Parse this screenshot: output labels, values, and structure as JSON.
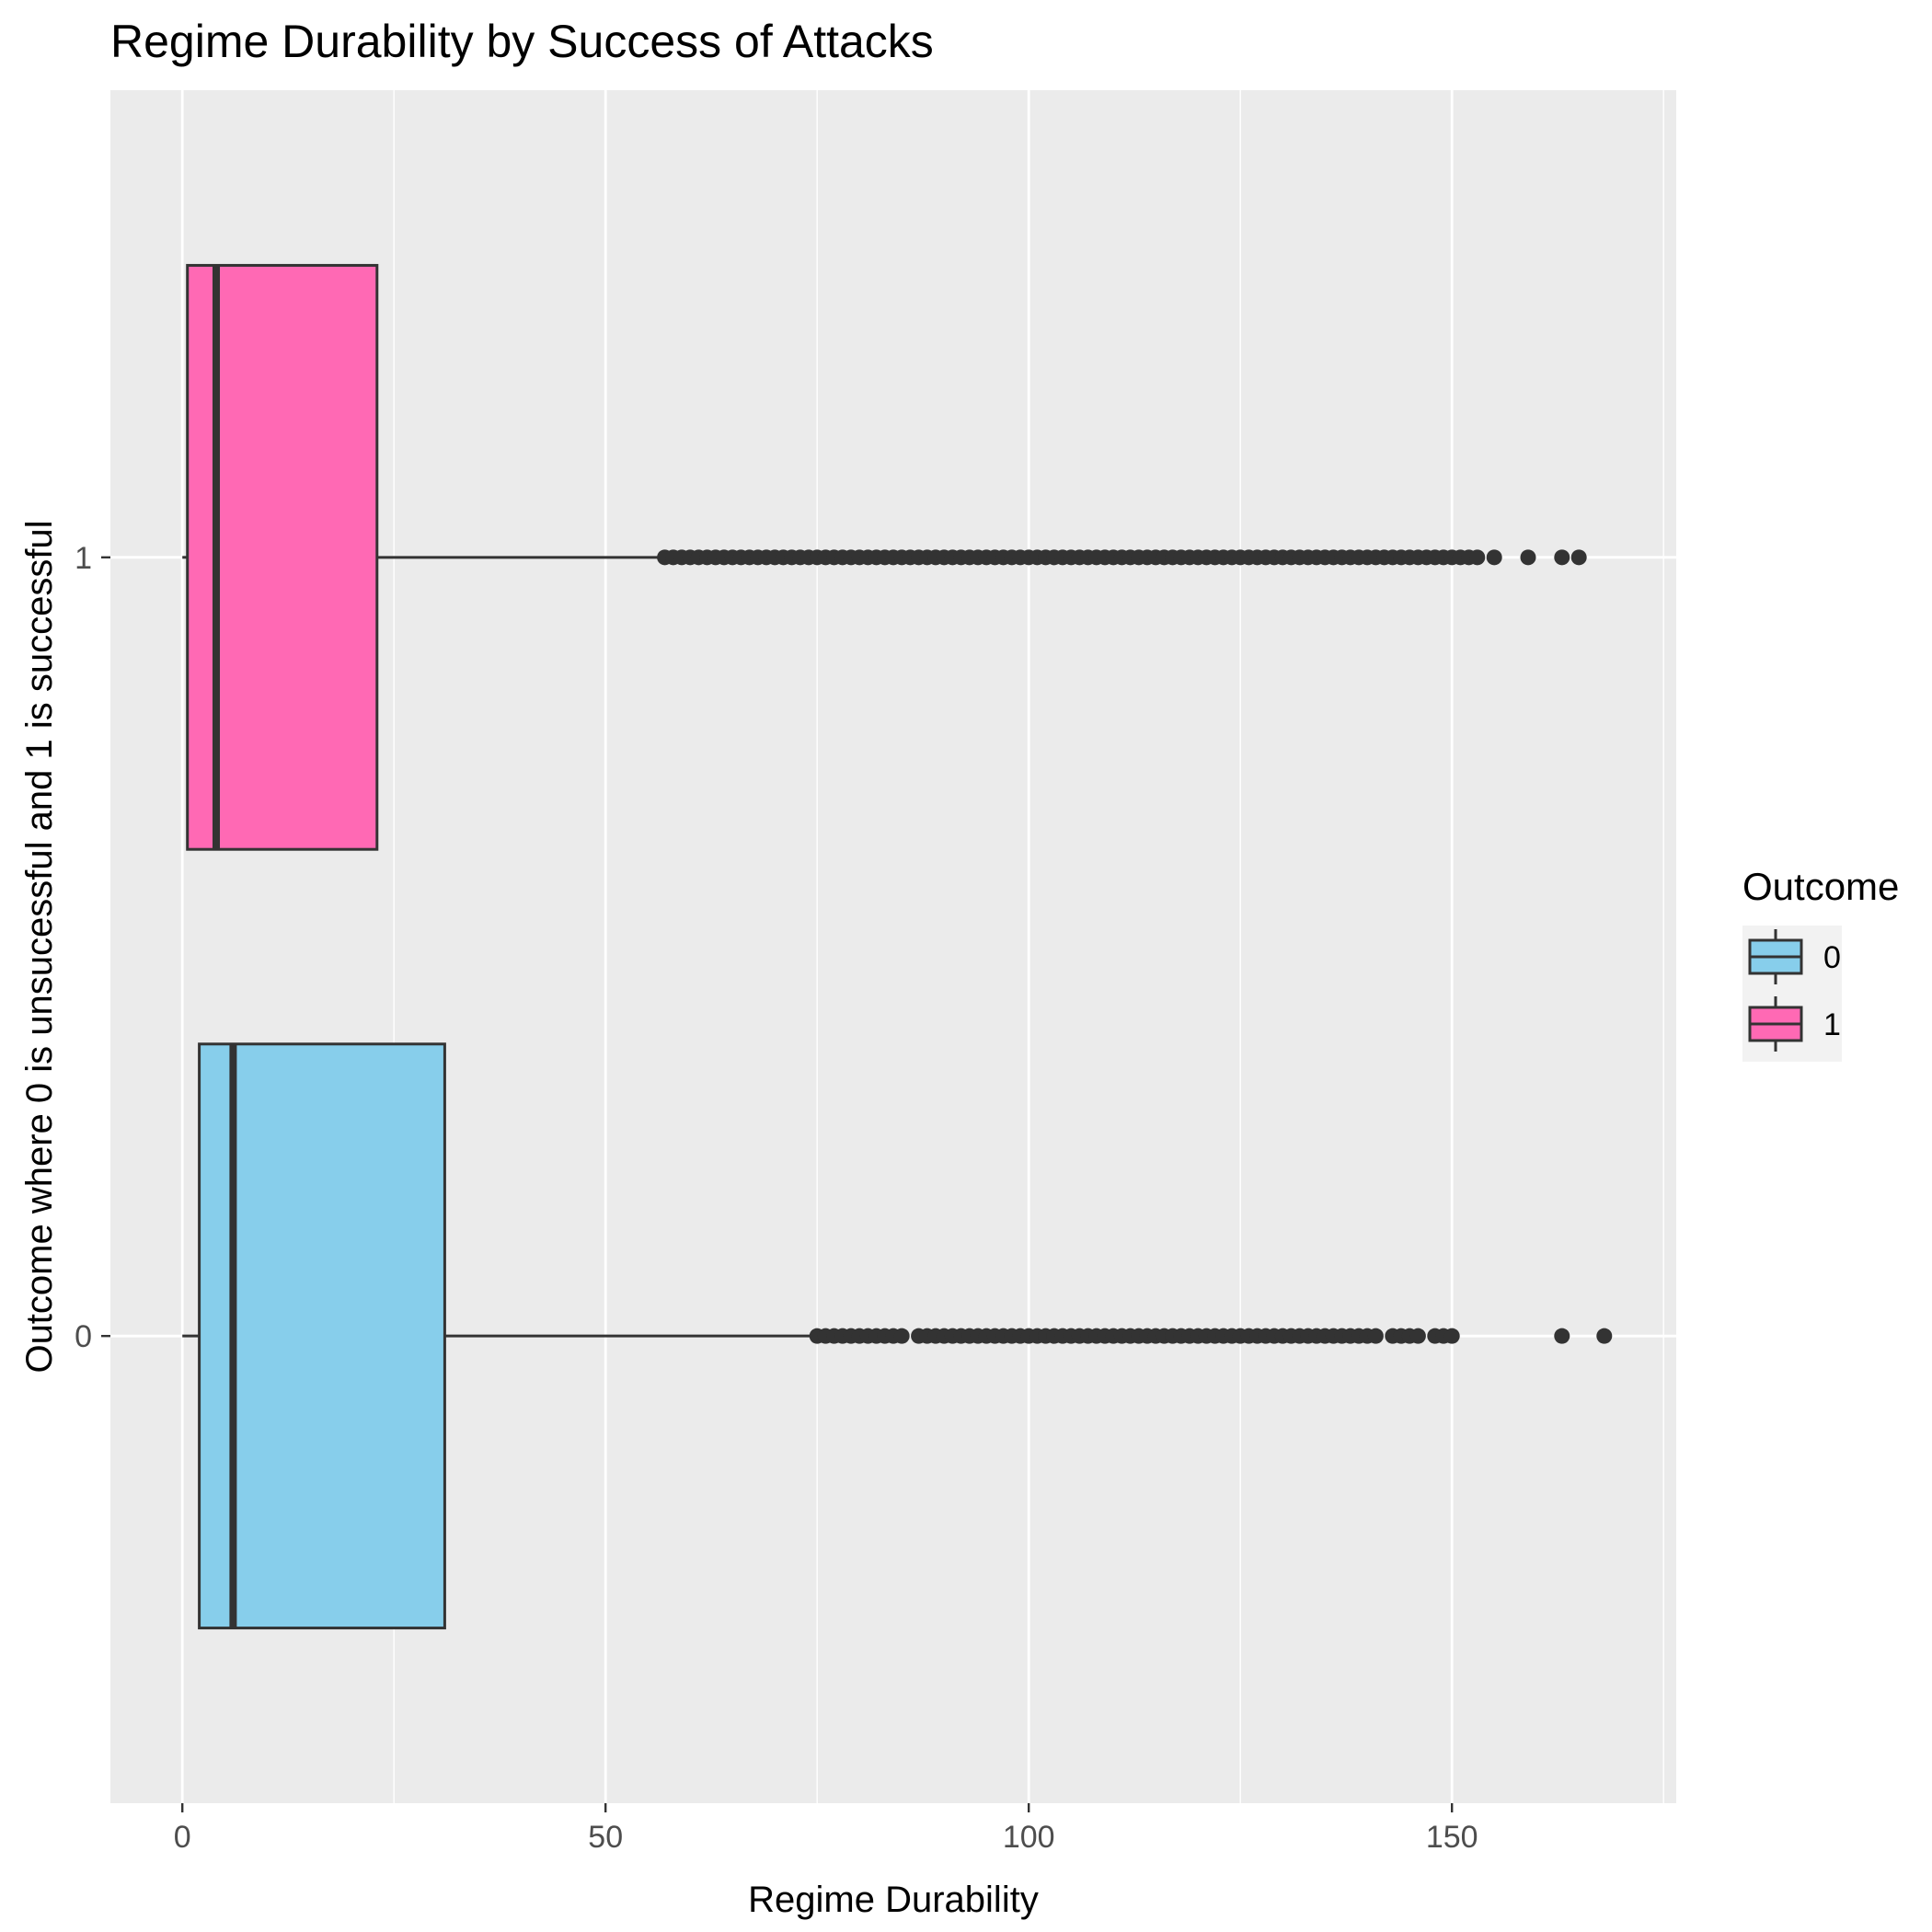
{
  "chart_data": {
    "type": "boxplot",
    "orientation": "horizontal",
    "title": "Regime Durability by Success of Attacks",
    "xlabel": "Regime Durability",
    "ylabel": "Outcome where 0 is unsucessful and 1 is successful",
    "xlim": [
      -8.5,
      176.5
    ],
    "xticks": [
      0,
      50,
      100,
      150
    ],
    "x_minor_ticks": [
      25,
      75,
      125,
      175
    ],
    "categories": [
      "0",
      "1"
    ],
    "grid": true,
    "legend": {
      "title": "Outcome",
      "position": "right",
      "entries": [
        {
          "label": "0",
          "color": "#87ceeb"
        },
        {
          "label": "1",
          "color": "#ff69b4"
        }
      ]
    },
    "series": [
      {
        "category": "0",
        "color": "#87ceeb",
        "min": 0,
        "q1": 2,
        "median": 6,
        "q3": 31,
        "whisker_high": 75,
        "outliers": [
          75,
          76,
          77,
          78,
          79,
          80,
          81,
          82,
          83,
          84,
          85,
          87,
          88,
          89,
          90,
          91,
          92,
          93,
          94,
          95,
          96,
          97,
          98,
          99,
          100,
          101,
          102,
          103,
          104,
          105,
          106,
          107,
          108,
          109,
          110,
          111,
          112,
          113,
          114,
          115,
          116,
          117,
          118,
          119,
          120,
          121,
          122,
          123,
          124,
          125,
          126,
          127,
          128,
          129,
          130,
          131,
          132,
          133,
          134,
          135,
          136,
          137,
          138,
          139,
          140,
          141,
          143,
          144,
          145,
          146,
          148,
          149,
          150,
          163,
          168
        ]
      },
      {
        "category": "1",
        "color": "#ff69b4",
        "min": 0,
        "q1": 0.6,
        "median": 4,
        "q3": 23,
        "whisker_high": 57,
        "outliers": [
          57,
          58,
          59,
          60,
          61,
          62,
          63,
          64,
          65,
          66,
          67,
          68,
          69,
          70,
          71,
          72,
          73,
          74,
          75,
          76,
          77,
          78,
          79,
          80,
          81,
          82,
          83,
          84,
          85,
          86,
          87,
          88,
          89,
          90,
          91,
          92,
          93,
          94,
          95,
          96,
          97,
          98,
          99,
          100,
          101,
          102,
          103,
          104,
          105,
          106,
          107,
          108,
          109,
          110,
          111,
          112,
          113,
          114,
          115,
          116,
          117,
          118,
          119,
          120,
          121,
          122,
          123,
          124,
          125,
          126,
          127,
          128,
          129,
          130,
          131,
          132,
          133,
          134,
          135,
          136,
          137,
          138,
          139,
          140,
          141,
          142,
          143,
          144,
          145,
          146,
          147,
          148,
          149,
          150,
          151,
          152,
          153,
          155,
          159,
          163,
          165
        ]
      }
    ]
  }
}
